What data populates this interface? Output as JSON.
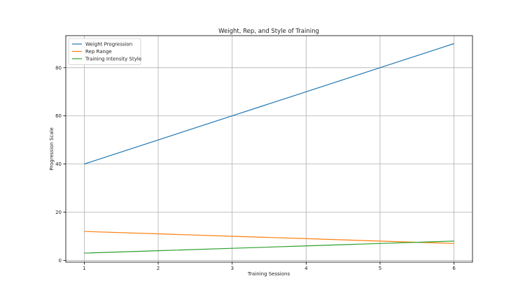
{
  "chart_data": {
    "type": "line",
    "title": "Weight, Rep, and Style of Training",
    "xlabel": "Training Sessions",
    "ylabel": "Progression Scale",
    "x": [
      1,
      2,
      3,
      4,
      5,
      6
    ],
    "xlim": [
      0.75,
      6.25
    ],
    "ylim": [
      -0.75,
      93.3
    ],
    "xticks": [
      1,
      2,
      3,
      4,
      5,
      6
    ],
    "yticks": [
      0,
      20,
      40,
      60,
      80
    ],
    "grid": true,
    "legend_position": "upper-left",
    "series": [
      {
        "name": "Weight Progression",
        "color": "#1f77b4",
        "values": [
          40,
          50,
          60,
          70,
          80,
          90
        ]
      },
      {
        "name": "Rep Range",
        "color": "#ff7f0e",
        "values": [
          12,
          11,
          10,
          9,
          8,
          7
        ]
      },
      {
        "name": "Training Intensity Style",
        "color": "#2ca02c",
        "values": [
          3,
          4,
          5,
          6,
          7,
          8
        ]
      }
    ]
  }
}
